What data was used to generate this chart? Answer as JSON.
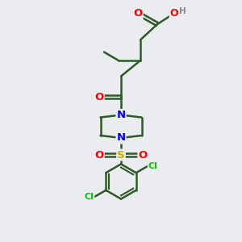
{
  "background_color": "#eaecf0",
  "bond_color": "#2d5a27",
  "bond_width": 1.8,
  "atom_colors": {
    "O": "#ff0000",
    "N": "#0000ff",
    "S": "#ccaa00",
    "Cl": "#00cc00",
    "C": "#2d5a27",
    "H": "#888888"
  },
  "font_size": 8.5
}
